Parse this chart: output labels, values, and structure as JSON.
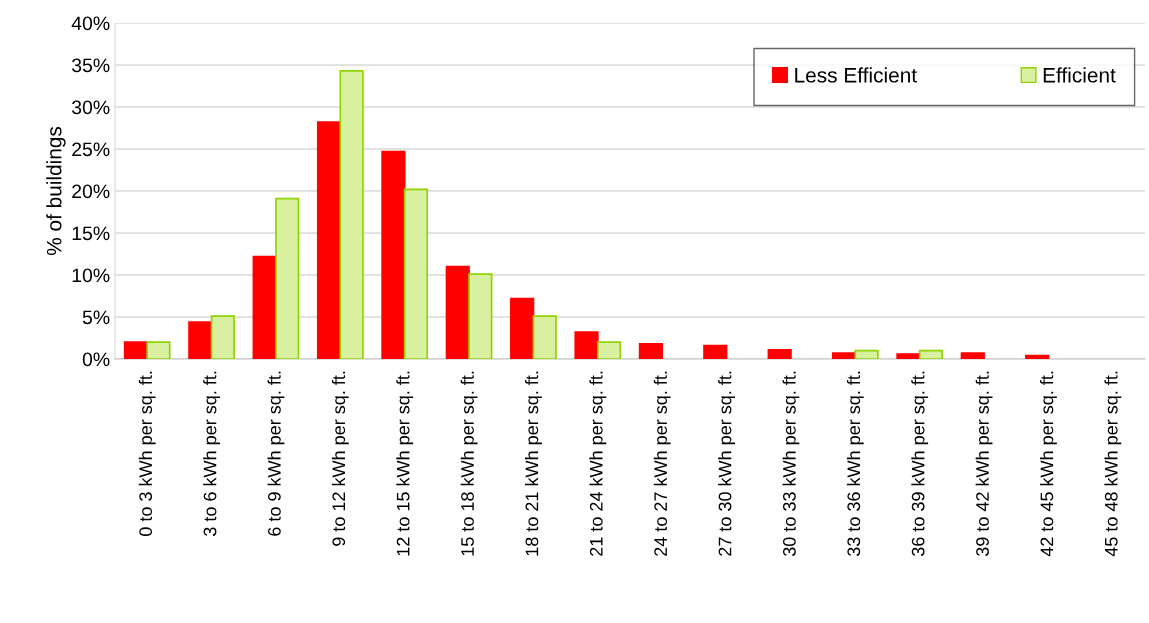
{
  "chart_data": {
    "type": "bar",
    "ylabel": "% of buildings",
    "categories": [
      "0 to 3 kWh per sq. ft.",
      "3 to 6 kWh per sq. ft.",
      "6 to 9 kWh per sq. ft.",
      "9 to 12 kWh per sq. ft.",
      "12 to 15 kWh per sq. ft.",
      "15 to 18 kWh per sq. ft.",
      "18 to 21 kWh per sq. ft.",
      "21 to 24 kWh per sq. ft.",
      "24 to 27 kWh per sq. ft.",
      "27 to 30 kWh per sq. ft.",
      "30 to 33 kWh per sq. ft.",
      "33 to 36 kWh per sq. ft.",
      "36 to 39 kWh per sq. ft.",
      "39 to 42 kWh per sq. ft.",
      "42 to 45 kWh per sq. ft.",
      "45 to 48 kWh per sq. ft."
    ],
    "series": [
      {
        "name": "Less Efficient",
        "color": "#ff0000",
        "values": [
          2.0,
          4.4,
          12.2,
          28.2,
          24.7,
          11.0,
          7.2,
          3.2,
          1.8,
          1.6,
          1.1,
          0.7,
          0.6,
          0.7,
          0.4,
          0
        ]
      },
      {
        "name": "Efficient",
        "color": "#d8f0a0",
        "values": [
          2.0,
          5.1,
          19.1,
          34.3,
          20.2,
          10.1,
          5.1,
          2.0,
          0,
          0,
          0,
          1.0,
          1.0,
          0,
          0,
          0
        ]
      }
    ],
    "ylim": [
      0,
      40
    ],
    "yticks": [
      {
        "value": 0,
        "label": "0%"
      },
      {
        "value": 5,
        "label": "5%"
      },
      {
        "value": 10,
        "label": "10%"
      },
      {
        "value": 15,
        "label": "15%"
      },
      {
        "value": 20,
        "label": "20%"
      },
      {
        "value": 25,
        "label": "25%"
      },
      {
        "value": 30,
        "label": "30%"
      },
      {
        "value": 35,
        "label": "35%"
      },
      {
        "value": 40,
        "label": "40%"
      }
    ],
    "grid": "y",
    "legend": "top right"
  }
}
